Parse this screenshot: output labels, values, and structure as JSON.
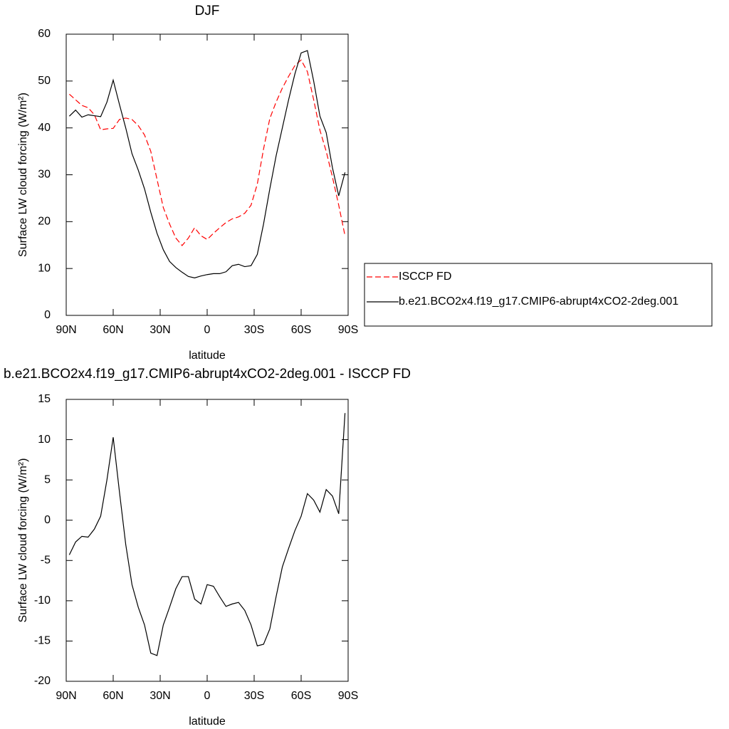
{
  "chart_data": [
    {
      "type": "line",
      "title": "DJF",
      "xlabel": "latitude",
      "ylabel": "Surface LW cloud forcing (W/m²)",
      "x": [
        88,
        84,
        80,
        76,
        72,
        68,
        64,
        60,
        56,
        52,
        48,
        44,
        40,
        36,
        32,
        28,
        24,
        20,
        16,
        12,
        8,
        4,
        0,
        -4,
        -8,
        -12,
        -16,
        -20,
        -24,
        -28,
        -32,
        -36,
        -40,
        -44,
        -48,
        -52,
        -56,
        -60,
        -64,
        -68,
        -72,
        -76,
        -80,
        -84,
        -88
      ],
      "xlim": [
        90,
        -90
      ],
      "xticks": [
        {
          "value": 90,
          "label": "90N"
        },
        {
          "value": 60,
          "label": "60N"
        },
        {
          "value": 30,
          "label": "30N"
        },
        0,
        {
          "value": -30,
          "label": "30S"
        },
        {
          "value": -60,
          "label": "60S"
        },
        {
          "value": -90,
          "label": "90S"
        }
      ],
      "ylim": [
        0,
        60
      ],
      "yticks": [
        0,
        10,
        20,
        30,
        40,
        50,
        60
      ],
      "legend": "right",
      "series": [
        {
          "name": "ISCCP FD",
          "color": "#ff0000",
          "dashed": true,
          "values": [
            47.2,
            46,
            44.8,
            44.3,
            42.8,
            39.6,
            39.8,
            39.9,
            41.8,
            42.1,
            41.8,
            40.5,
            38.5,
            35,
            29,
            23,
            19.5,
            16.5,
            14.9,
            16.5,
            18.7,
            17,
            16.2,
            17.5,
            18.7,
            19.8,
            20.6,
            21,
            21.8,
            23.5,
            28,
            35.5,
            42,
            45.5,
            48.5,
            51,
            53.3,
            54.5,
            52,
            46,
            39.5,
            35,
            29.5,
            23.5,
            17
          ]
        },
        {
          "name": "b.e21.BCO2x4.f19_g17.CMIP6-abrupt4xCO2-2deg.001",
          "color": "#000000",
          "dashed": false,
          "values": [
            42.5,
            43.8,
            42.3,
            42.8,
            42.6,
            42.4,
            45.5,
            50.2,
            45,
            40,
            34.5,
            31,
            27,
            22,
            17.5,
            14,
            11.5,
            10.2,
            9.2,
            8.3,
            8,
            8.4,
            8.7,
            8.9,
            8.9,
            9.3,
            10.6,
            10.9,
            10.4,
            10.6,
            13,
            19.5,
            27,
            34,
            40,
            46,
            51.5,
            56,
            56.5,
            50,
            42.5,
            39,
            31.5,
            25.5,
            30.5
          ]
        }
      ]
    },
    {
      "type": "line",
      "title": "b.e21.BCO2x4.f19_g17.CMIP6-abrupt4xCO2-2deg.001 - ISCCP FD",
      "xlabel": "latitude",
      "ylabel": "Surface LW cloud forcing (W/m²)",
      "x": [
        88,
        84,
        80,
        76,
        72,
        68,
        64,
        60,
        56,
        52,
        48,
        44,
        40,
        36,
        32,
        28,
        24,
        20,
        16,
        12,
        8,
        4,
        0,
        -4,
        -8,
        -12,
        -16,
        -20,
        -24,
        -28,
        -32,
        -36,
        -40,
        -44,
        -48,
        -52,
        -56,
        -60,
        -64,
        -68,
        -72,
        -76,
        -80,
        -84,
        -88
      ],
      "xlim": [
        90,
        -90
      ],
      "xticks": [
        {
          "value": 90,
          "label": "90N"
        },
        {
          "value": 60,
          "label": "60N"
        },
        {
          "value": 30,
          "label": "30N"
        },
        0,
        {
          "value": -30,
          "label": "30S"
        },
        {
          "value": -60,
          "label": "60S"
        },
        {
          "value": -90,
          "label": "90S"
        }
      ],
      "ylim": [
        -20,
        15
      ],
      "yticks": [
        -20,
        -15,
        -10,
        -5,
        0,
        5,
        10,
        15
      ],
      "series": [
        {
          "color": "#000000",
          "dashed": false,
          "values": [
            -4.3,
            -2.7,
            -2,
            -2.1,
            -1.1,
            0.5,
            5,
            10.3,
            3.5,
            -3,
            -8,
            -10.8,
            -13,
            -16.5,
            -16.8,
            -13,
            -10.8,
            -8.5,
            -7,
            -7,
            -9.8,
            -10.4,
            -8,
            -8.2,
            -9.5,
            -10.7,
            -10.4,
            -10.2,
            -11.2,
            -13,
            -15.6,
            -15.4,
            -13.5,
            -9.5,
            -5.8,
            -3.5,
            -1.3,
            0.5,
            3.3,
            2.5,
            1,
            3.8,
            3,
            0.8,
            13.3
          ]
        }
      ]
    }
  ]
}
